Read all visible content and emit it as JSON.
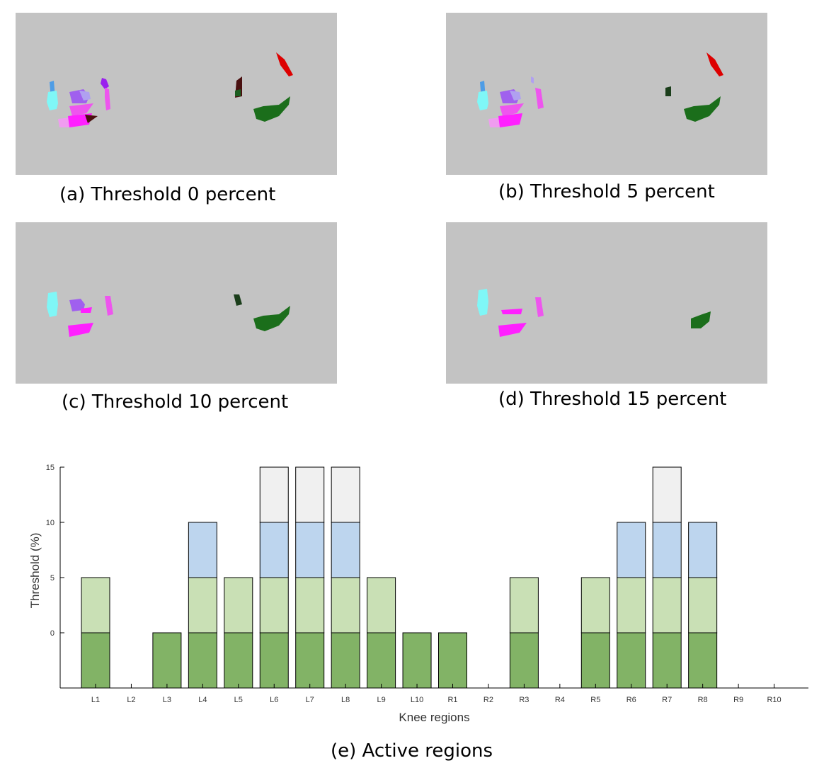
{
  "panels": [
    {
      "caption": "(a) Threshold 0 percent"
    },
    {
      "caption": "(b) Threshold 5 percent"
    },
    {
      "caption": "(c) Threshold 10 percent"
    },
    {
      "caption": "(d) Threshold 15 percent"
    }
  ],
  "colors": {
    "panel_bg": "#c3c3c3",
    "level_0": "#82b366",
    "level_5": "#c9e0b5",
    "level_10": "#bdd5ee",
    "level_15": "#f0f0f0",
    "bar_edge": "#000000"
  },
  "chart_caption": "(e) Active regions",
  "chart_data": {
    "type": "bar",
    "stacked": true,
    "categories": [
      "L1",
      "L2",
      "L3",
      "L4",
      "L5",
      "L6",
      "L7",
      "L8",
      "L9",
      "L10",
      "R1",
      "R2",
      "R3",
      "R4",
      "R5",
      "R6",
      "R7",
      "R8",
      "R9",
      "R10"
    ],
    "max_active_threshold": [
      5,
      null,
      0,
      10,
      5,
      15,
      15,
      15,
      5,
      0,
      0,
      null,
      5,
      null,
      5,
      10,
      15,
      10,
      null,
      null
    ],
    "xlabel": "Knee regions",
    "ylabel": "Threshold (%)",
    "yticks": [
      0,
      5,
      10,
      15
    ],
    "ylim": [
      -5,
      15
    ],
    "grid": false,
    "legend": "none"
  }
}
